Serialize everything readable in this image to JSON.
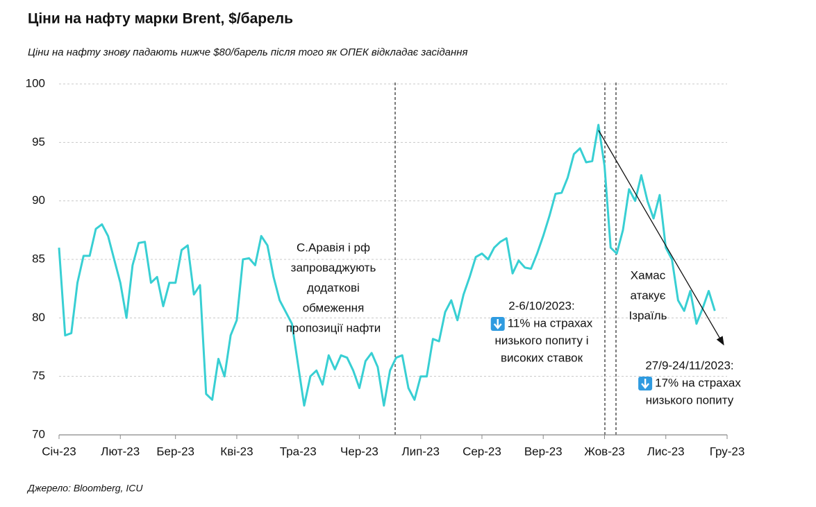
{
  "chart_data": {
    "type": "line",
    "title": "Ціни на нафту марки Brent, $/барель",
    "subtitle": "Ціни на нафту знову падають нижче $80/барель після того як ОПЕК відкладає засідання",
    "source": "Джерело: Bloomberg, ICU",
    "categories": [
      "Січ-23",
      null,
      null,
      null,
      null,
      null,
      null,
      null,
      null,
      null,
      "Лют-23",
      null,
      null,
      null,
      null,
      null,
      null,
      null,
      null,
      "Бер-23",
      null,
      null,
      null,
      null,
      null,
      null,
      null,
      null,
      null,
      "Кві-23",
      null,
      null,
      null,
      null,
      null,
      null,
      null,
      null,
      null,
      "Тра-23",
      null,
      null,
      null,
      null,
      null,
      null,
      null,
      null,
      null,
      "Чер-23",
      null,
      null,
      null,
      null,
      null,
      null,
      null,
      null,
      null,
      "Лип-23",
      null,
      null,
      null,
      null,
      null,
      null,
      null,
      null,
      null,
      "Сер-23",
      null,
      null,
      null,
      null,
      null,
      null,
      null,
      null,
      null,
      "Вер-23",
      null,
      null,
      null,
      null,
      null,
      null,
      null,
      null,
      null,
      "Жов-23",
      null,
      null,
      null,
      null,
      null,
      null,
      null,
      null,
      null,
      "Лис-23",
      null,
      null,
      null,
      null,
      null,
      null,
      null,
      null,
      null,
      "Гру-23"
    ],
    "values": [
      86,
      78.5,
      78.7,
      83,
      85.3,
      85.3,
      87.6,
      88,
      87,
      85,
      83,
      80,
      84.5,
      86.4,
      86.5,
      83,
      83.5,
      81,
      83,
      83,
      85.8,
      86.2,
      82,
      82.8,
      73.5,
      73,
      76.5,
      75,
      78.5,
      79.8,
      85,
      85.1,
      84.5,
      87,
      86.2,
      83.5,
      81.5,
      80.5,
      79.5,
      76,
      72.5,
      75,
      75.5,
      74.3,
      76.8,
      75.6,
      76.8,
      76.6,
      75.5,
      74,
      76.3,
      77,
      75.8,
      72.5,
      75.5,
      76.6,
      76.8,
      74,
      73,
      75,
      75,
      78.2,
      78,
      80.5,
      81.5,
      79.8,
      82,
      83.5,
      85.2,
      85.5,
      85,
      86,
      86.5,
      86.8,
      83.8,
      84.9,
      84.3,
      84.2,
      85.5,
      87,
      88.7,
      90.6,
      90.7,
      92,
      94,
      94.5,
      93.3,
      93.4,
      96.5,
      93,
      86,
      85.5,
      87.5,
      91,
      90,
      92.2,
      90,
      88.5,
      90.5,
      86,
      85,
      81.5,
      80.6,
      82.3,
      79.5,
      80.8,
      82.3,
      80.6,
      null,
      null
    ],
    "color": "#38cfd3",
    "ylim": [
      70,
      100
    ],
    "yticks": [
      70,
      75,
      80,
      85,
      90,
      95,
      100
    ],
    "grid": true,
    "annotations": [
      [
        "С.Аравія і рф",
        "запроваджують",
        "додаткові",
        "обмеження",
        "пропозиції нафти"
      ],
      [
        "2-6/10/2023:",
        "11% на страхах",
        "низького попиту і",
        "високих ставок"
      ],
      [
        "Хамас",
        "атакує",
        "Ізраїль"
      ],
      [
        "27/9-24/11/2023:",
        "17% на страхах",
        "низького попиту"
      ]
    ]
  }
}
